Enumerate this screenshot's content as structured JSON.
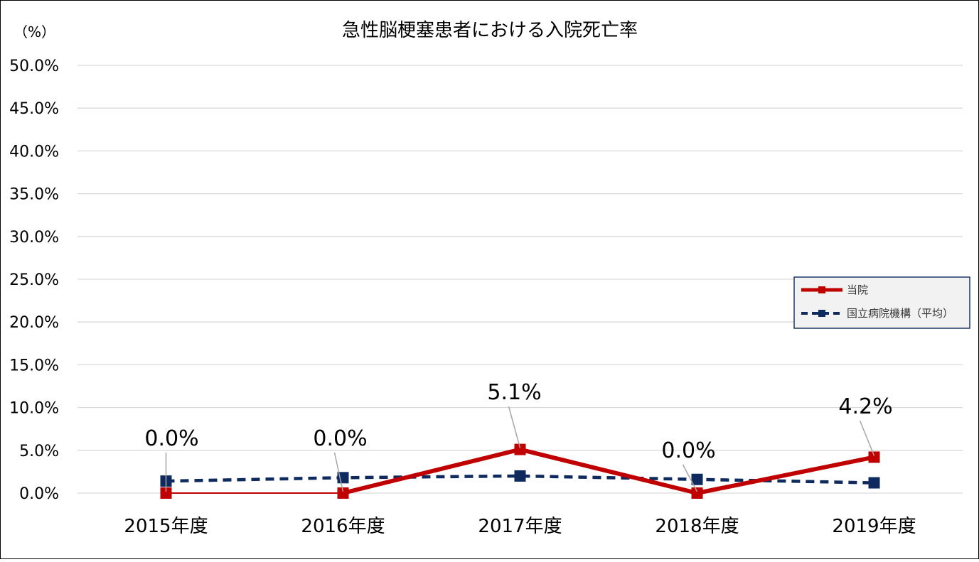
{
  "chart_data": {
    "type": "line",
    "title": "急性脳梗塞患者における入院死亡率",
    "ylabel": "（%）",
    "xlabel": "",
    "categories": [
      "2015年度",
      "2016年度",
      "2017年度",
      "2018年度",
      "2019年度"
    ],
    "ylim": [
      0,
      50
    ],
    "yticks": [
      0,
      5,
      10,
      15,
      20,
      25,
      30,
      35,
      40,
      45,
      50
    ],
    "ytick_labels": [
      "0.0%",
      "5.0%",
      "10.0%",
      "15.0%",
      "20.0%",
      "25.0%",
      "30.0%",
      "35.0%",
      "40.0%",
      "45.0%",
      "50.0%"
    ],
    "grid": true,
    "legend_position": "right",
    "series": [
      {
        "name": "当院",
        "values": [
          0.0,
          0.0,
          5.1,
          0.0,
          4.2
        ],
        "labels": [
          "0.0%",
          "0.0%",
          "5.1%",
          "0.0%",
          "4.2%"
        ],
        "color": "#C00000",
        "style": "solid",
        "marker": "square"
      },
      {
        "name": "国立病院機構（平均）",
        "values": [
          1.4,
          1.8,
          2.0,
          1.6,
          1.2
        ],
        "color": "#0F2A5F",
        "style": "dashed",
        "marker": "square"
      }
    ]
  }
}
